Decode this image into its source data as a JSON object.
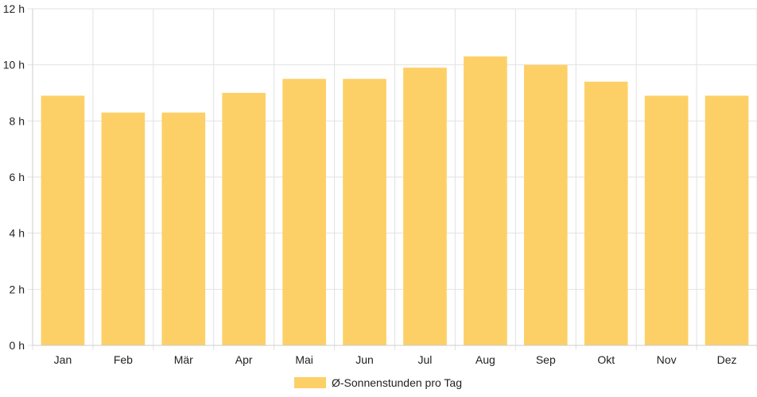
{
  "chart_data": {
    "type": "bar",
    "categories": [
      "Jan",
      "Feb",
      "Mär",
      "Apr",
      "Mai",
      "Jun",
      "Jul",
      "Aug",
      "Sep",
      "Okt",
      "Nov",
      "Dez"
    ],
    "series": [
      {
        "name": "Ø-Sonnenstunden pro Tag",
        "values": [
          8.9,
          8.3,
          8.3,
          9.0,
          9.5,
          9.5,
          9.9,
          10.3,
          10.0,
          9.4,
          8.9,
          8.9
        ]
      }
    ],
    "ylim": [
      0,
      12
    ],
    "yticks": [
      0,
      2,
      4,
      6,
      8,
      10,
      12
    ],
    "ytick_suffix": " h",
    "grid": true,
    "legend_position": "bottom",
    "colors": {
      "bar_fill": "#fdd067",
      "grid": "#e2e2e2",
      "axis": "#cccccc"
    }
  }
}
